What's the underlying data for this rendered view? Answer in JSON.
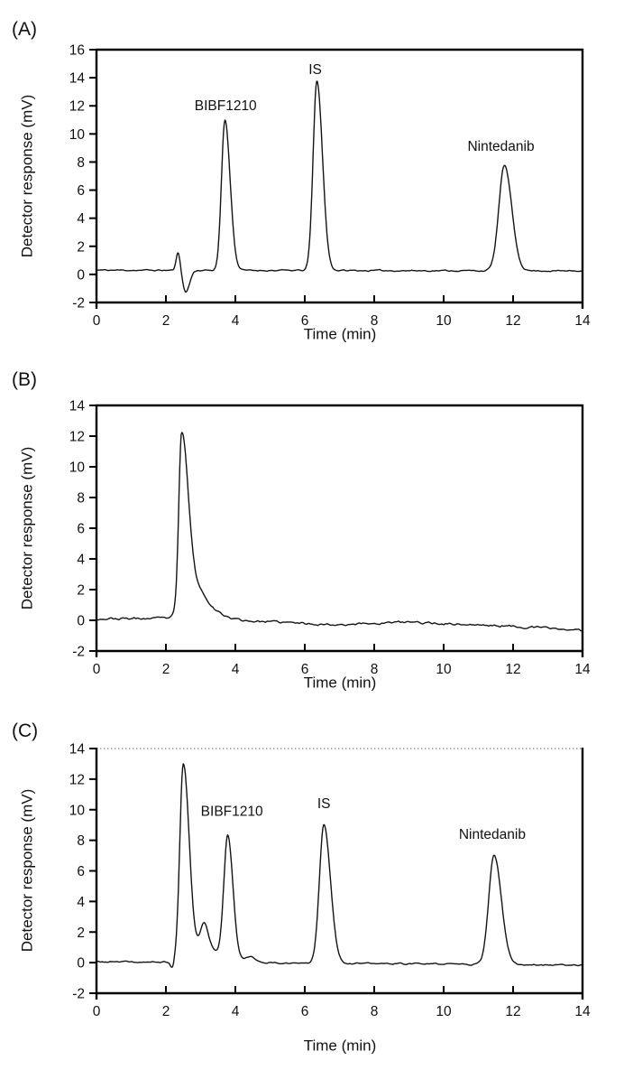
{
  "colors": {
    "ink": "#000000",
    "background": "#ffffff",
    "trace": "#141414",
    "dotted_border": "#666666"
  },
  "chart_data": [
    {
      "type": "line",
      "panel_label": "(A)",
      "xlabel": "Time (min)",
      "ylabel": "Detector response (mV)",
      "xlim": [
        0,
        14
      ],
      "xticks": [
        0,
        2,
        4,
        6,
        8,
        10,
        12,
        14
      ],
      "ylim": [
        -2,
        16
      ],
      "yticks": [
        -2,
        0,
        2,
        4,
        6,
        8,
        10,
        12,
        14,
        16
      ],
      "top_border": "solid",
      "grid": "off",
      "noise_seed": 11,
      "noise_amp": 0.06,
      "baseline": [
        [
          0,
          0.3
        ],
        [
          14,
          0.25
        ]
      ],
      "peaks": [
        {
          "name": "injection-artifact-positive",
          "rt_min": 2.35,
          "amp": 1.25,
          "sigma_l": 0.055,
          "sigma_r": 0.06
        },
        {
          "name": "injection-artifact-negative",
          "rt_min": 2.57,
          "amp": -1.55,
          "sigma_l": 0.08,
          "sigma_r": 0.11
        },
        {
          "name": "BIBF1210",
          "rt_min": 3.7,
          "amp": 10.7,
          "sigma_l": 0.1,
          "sigma_r": 0.15,
          "apex_mV": 11.0
        },
        {
          "name": "IS",
          "rt_min": 6.35,
          "amp": 13.5,
          "sigma_l": 0.11,
          "sigma_r": 0.16,
          "apex_mV": 13.8
        },
        {
          "name": "Nintedanib",
          "rt_min": 11.75,
          "amp": 7.5,
          "sigma_l": 0.16,
          "sigma_r": 0.21,
          "apex_mV": 7.8
        }
      ],
      "annotations": [
        {
          "text": "BIBF1210",
          "x": 3.72,
          "y": 11.7
        },
        {
          "text": "IS",
          "x": 6.3,
          "y": 14.25
        },
        {
          "text": "Nintedanib",
          "x": 11.65,
          "y": 8.8
        }
      ]
    },
    {
      "type": "line",
      "panel_label": "(B)",
      "xlabel": "Time (min)",
      "ylabel": "Detector response (mV)",
      "xlim": [
        0,
        14
      ],
      "xticks": [
        0,
        2,
        4,
        6,
        8,
        10,
        12,
        14
      ],
      "ylim": [
        -2,
        14
      ],
      "yticks": [
        -2,
        0,
        2,
        4,
        6,
        8,
        10,
        12,
        14
      ],
      "top_border": "solid",
      "grid": "off",
      "noise_seed": 23,
      "noise_amp": 0.09,
      "baseline": [
        [
          0,
          0.1
        ],
        [
          2.3,
          0.12
        ],
        [
          4.5,
          -0.05
        ],
        [
          6.8,
          -0.28
        ],
        [
          9,
          -0.12
        ],
        [
          11.5,
          -0.35
        ],
        [
          13,
          -0.5
        ],
        [
          14,
          -0.68
        ]
      ],
      "peaks": [
        {
          "name": "solvent-front",
          "rt_min": 2.45,
          "amp": 11.0,
          "sigma_l": 0.08,
          "sigma_r": 0.18,
          "apex_mV": 12.5
        },
        {
          "name": "solvent-front-tail",
          "rt_min": 2.75,
          "amp": 2.2,
          "sigma_l": 0.25,
          "sigma_r": 0.35
        },
        {
          "name": "solvent-front-tail-2",
          "rt_min": 3.35,
          "amp": 0.35,
          "sigma_l": 0.3,
          "sigma_r": 0.4
        }
      ],
      "annotations": []
    },
    {
      "type": "line",
      "panel_label": "(C)",
      "xlabel": "Time (min)",
      "ylabel": "Detector response (mV)",
      "xlim": [
        0,
        14
      ],
      "xticks": [
        0,
        2,
        4,
        6,
        8,
        10,
        12,
        14
      ],
      "ylim": [
        -2,
        14
      ],
      "yticks": [
        -2,
        0,
        2,
        4,
        6,
        8,
        10,
        12,
        14
      ],
      "top_border": "dotted",
      "grid": "off",
      "noise_seed": 37,
      "noise_amp": 0.06,
      "baseline": [
        [
          0,
          0.05
        ],
        [
          14,
          -0.15
        ]
      ],
      "peaks": [
        {
          "name": "pre-solvent-dip",
          "rt_min": 2.18,
          "amp": -0.45,
          "sigma_l": 0.05,
          "sigma_r": 0.05
        },
        {
          "name": "solvent-front",
          "rt_min": 2.5,
          "amp": 12.85,
          "sigma_l": 0.1,
          "sigma_r": 0.17,
          "apex_mV": 13.0
        },
        {
          "name": "solvent-front-secondary",
          "rt_min": 3.1,
          "amp": 1.9,
          "sigma_l": 0.12,
          "sigma_r": 0.12,
          "apex_mV": 2.7
        },
        {
          "name": "early-region-pedestal",
          "rt_min": 3.35,
          "amp": 0.75,
          "sigma_l": 0.5,
          "sigma_r": 0.4
        },
        {
          "name": "BIBF1210",
          "rt_min": 3.78,
          "amp": 7.9,
          "sigma_l": 0.11,
          "sigma_r": 0.15,
          "apex_mV": 8.5
        },
        {
          "name": "BIBF1210-tail-shoulder",
          "rt_min": 4.4,
          "amp": 0.4,
          "sigma_l": 0.12,
          "sigma_r": 0.2
        },
        {
          "name": "IS",
          "rt_min": 6.55,
          "amp": 9.1,
          "sigma_l": 0.13,
          "sigma_r": 0.19,
          "apex_mV": 9.2
        },
        {
          "name": "Nintedanib",
          "rt_min": 11.45,
          "amp": 7.15,
          "sigma_l": 0.15,
          "sigma_r": 0.21,
          "apex_mV": 7.1
        }
      ],
      "annotations": [
        {
          "text": "BIBF1210",
          "x": 3.9,
          "y": 9.6
        },
        {
          "text": "IS",
          "x": 6.55,
          "y": 10.1
        },
        {
          "text": "Nintedanib",
          "x": 11.4,
          "y": 8.1
        }
      ]
    }
  ]
}
